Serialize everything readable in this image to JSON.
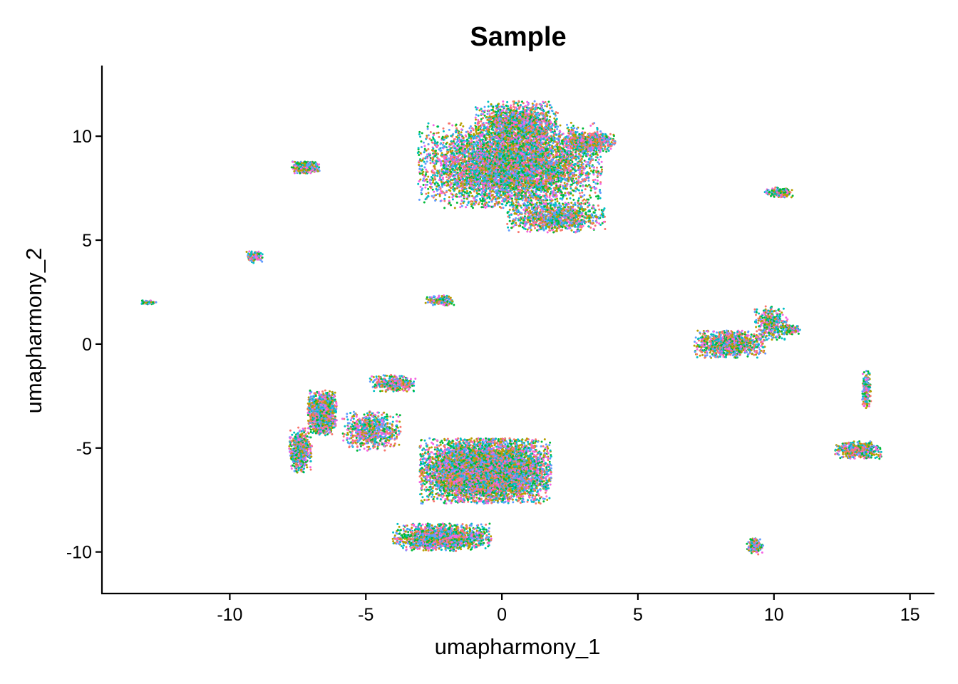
{
  "chart_data": {
    "type": "scatter",
    "title": "Sample",
    "xlabel": "umapharmony_1",
    "ylabel": "umapharmony_2",
    "xlim": [
      -14.7,
      15.9
    ],
    "ylim": [
      -12.0,
      13.4
    ],
    "x_ticks": [
      -10,
      -5,
      0,
      5,
      10,
      15
    ],
    "x_tick_labels": [
      "-10",
      "-5",
      "0",
      "5",
      "10",
      "15"
    ],
    "y_ticks": [
      -10,
      -5,
      0,
      5,
      10
    ],
    "y_tick_labels": [
      "-10",
      "-5",
      "0",
      "5",
      "10"
    ],
    "grid": false,
    "legend": "none",
    "series_colors": [
      "#F8766D",
      "#B79F00",
      "#00BA38",
      "#00BFC4",
      "#619CFF",
      "#F564E3"
    ],
    "clusters": [
      {
        "name": "top-main",
        "x": 0.3,
        "y": 8.6,
        "spread": [
          2.8,
          1.7
        ],
        "weight": 34
      },
      {
        "name": "top-main-upper",
        "x": 0.6,
        "y": 10.6,
        "spread": [
          1.3,
          0.9
        ],
        "weight": 8
      },
      {
        "name": "top-main-right",
        "x": 3.2,
        "y": 9.7,
        "spread": [
          0.8,
          0.4
        ],
        "weight": 4
      },
      {
        "name": "top-main-lower",
        "x": 2.0,
        "y": 6.1,
        "spread": [
          1.5,
          0.6
        ],
        "weight": 6
      },
      {
        "name": "top-left-blob",
        "x": -7.2,
        "y": 8.5,
        "spread": [
          0.45,
          0.25
        ],
        "weight": 2
      },
      {
        "name": "mid-left-small",
        "x": -9.1,
        "y": 4.2,
        "spread": [
          0.25,
          0.25
        ],
        "weight": 0.8
      },
      {
        "name": "far-left-streak",
        "x": -13.0,
        "y": 2.0,
        "spread": [
          0.25,
          0.08
        ],
        "weight": 0.3
      },
      {
        "name": "center-small",
        "x": -2.3,
        "y": 2.1,
        "spread": [
          0.45,
          0.2
        ],
        "weight": 1
      },
      {
        "name": "right-top-small",
        "x": 10.2,
        "y": 7.3,
        "spread": [
          0.45,
          0.2
        ],
        "weight": 1
      },
      {
        "name": "right-mid",
        "x": 8.4,
        "y": 0.0,
        "spread": [
          1.1,
          0.55
        ],
        "weight": 6
      },
      {
        "name": "right-mid-tail",
        "x": 9.9,
        "y": 1.0,
        "spread": [
          0.5,
          0.7
        ],
        "weight": 2
      },
      {
        "name": "right-mid-end",
        "x": 10.6,
        "y": 0.7,
        "spread": [
          0.3,
          0.2
        ],
        "weight": 1
      },
      {
        "name": "far-right",
        "x": 13.1,
        "y": -5.1,
        "spread": [
          0.7,
          0.35
        ],
        "weight": 3
      },
      {
        "name": "far-right-stalk",
        "x": 13.4,
        "y": -2.2,
        "spread": [
          0.15,
          0.8
        ],
        "weight": 1
      },
      {
        "name": "bottom-right-small",
        "x": 9.3,
        "y": -9.7,
        "spread": [
          0.25,
          0.35
        ],
        "weight": 0.8
      },
      {
        "name": "bottom-main",
        "x": -0.6,
        "y": -6.1,
        "spread": [
          2.0,
          1.3
        ],
        "weight": 40
      },
      {
        "name": "bottom-main-lower",
        "x": -2.2,
        "y": -9.3,
        "spread": [
          1.5,
          0.55
        ],
        "weight": 9
      },
      {
        "name": "bottom-left-arm",
        "x": -6.6,
        "y": -3.3,
        "spread": [
          0.45,
          0.9
        ],
        "weight": 7
      },
      {
        "name": "bottom-left-arm-low",
        "x": -7.4,
        "y": -5.1,
        "spread": [
          0.35,
          0.9
        ],
        "weight": 3
      },
      {
        "name": "bottom-left-bridge",
        "x": -4.8,
        "y": -4.2,
        "spread": [
          0.9,
          0.8
        ],
        "weight": 4
      },
      {
        "name": "bottom-upper-spike",
        "x": -4.0,
        "y": -1.9,
        "spread": [
          0.7,
          0.35
        ],
        "weight": 2
      }
    ],
    "n_points": 26000
  }
}
